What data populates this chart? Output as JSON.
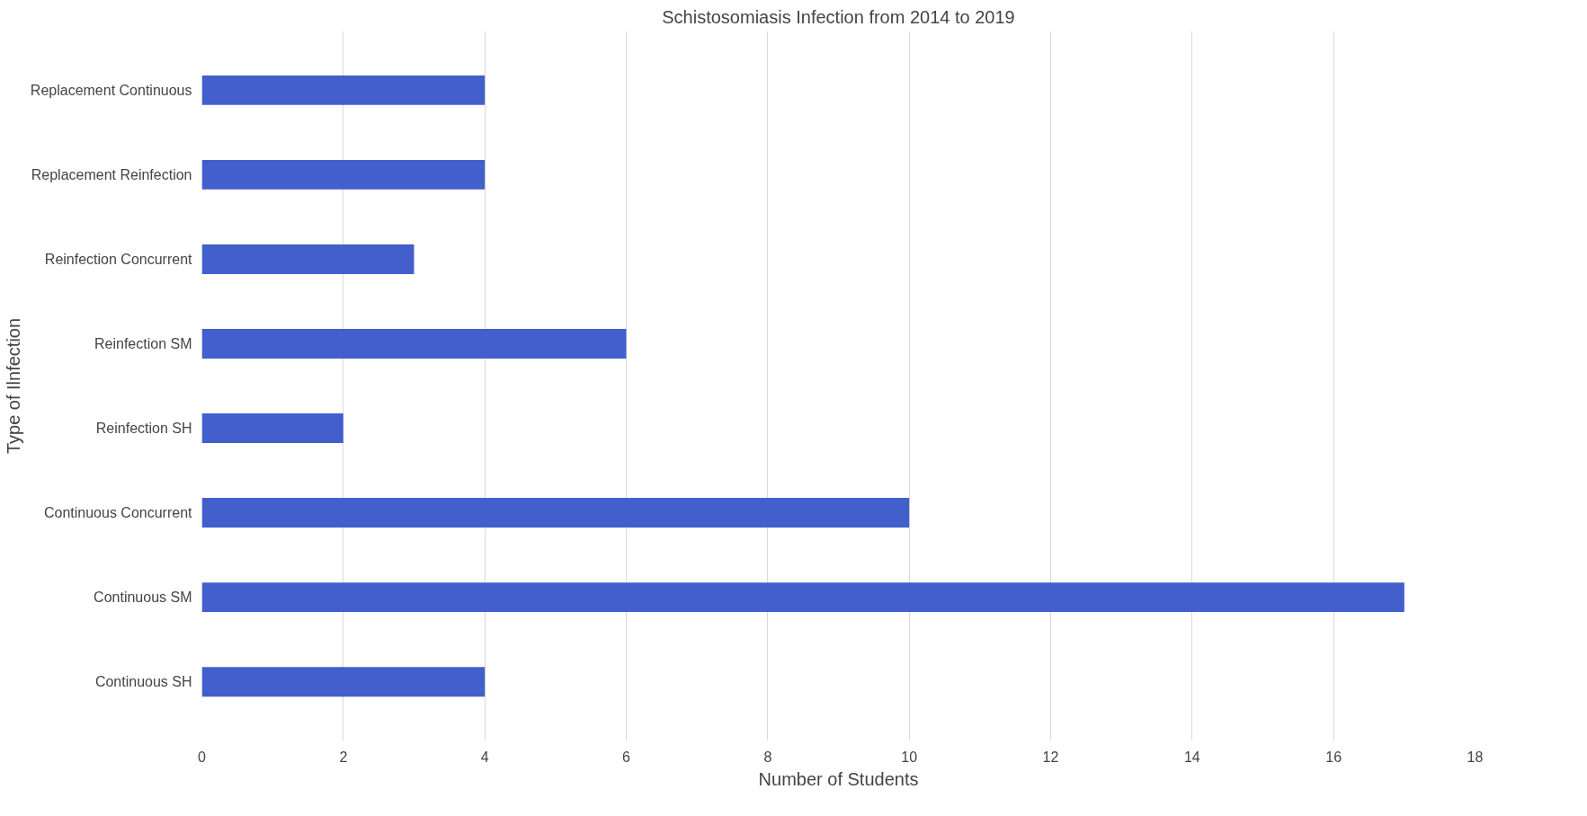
{
  "chart_data": {
    "type": "bar",
    "orientation": "horizontal",
    "title": "Schistosomiasis Infection from 2014 to 2019",
    "xlabel": "Number of Students",
    "ylabel": "Type of Ilnfection",
    "categories": [
      "Replacement Continuous",
      "Replacement Reinfection",
      "Reinfection Concurrent",
      "Reinfection SM",
      "Reinfection SH",
      "Continuous Concurrent",
      "Continuous SM",
      "Continuous SH"
    ],
    "values": [
      4,
      4,
      3,
      6,
      2,
      10,
      17,
      4
    ],
    "color": "#435fcc",
    "xlim": [
      0,
      18
    ],
    "xticks": [
      0,
      2,
      4,
      6,
      8,
      10,
      12,
      14,
      16,
      18
    ],
    "grid": "x"
  }
}
